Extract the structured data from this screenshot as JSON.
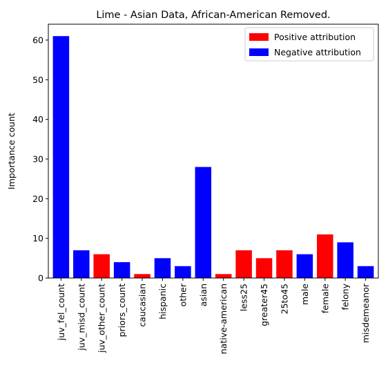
{
  "chart_data": {
    "type": "bar",
    "title": "Lime - Asian Data, African-American Removed.",
    "xlabel": "",
    "ylabel": "Importance count",
    "ylim": [
      0,
      64
    ],
    "yticks": [
      0,
      10,
      20,
      30,
      40,
      50,
      60
    ],
    "categories": [
      "juv_fel_count",
      "juv_misd_count",
      "juv_other_count",
      "priors_count",
      "caucasian",
      "hispanic",
      "other",
      "asian",
      "native-american",
      "less25",
      "greater45",
      "25to45",
      "male",
      "female",
      "felony",
      "misdemeanor"
    ],
    "values": [
      61,
      7,
      6,
      4,
      1,
      5,
      3,
      28,
      1,
      7,
      5,
      7,
      6,
      11,
      9,
      3
    ],
    "attribution": [
      "negative",
      "negative",
      "positive",
      "negative",
      "positive",
      "negative",
      "negative",
      "negative",
      "positive",
      "positive",
      "positive",
      "positive",
      "negative",
      "positive",
      "negative",
      "negative"
    ],
    "colors": {
      "positive": "#ff0000",
      "negative": "#0000ff"
    },
    "legend": {
      "position": "top-right",
      "items": [
        {
          "key": "positive",
          "label": "Positive attribution"
        },
        {
          "key": "negative",
          "label": "Negative attribution"
        }
      ]
    },
    "grid": false
  }
}
